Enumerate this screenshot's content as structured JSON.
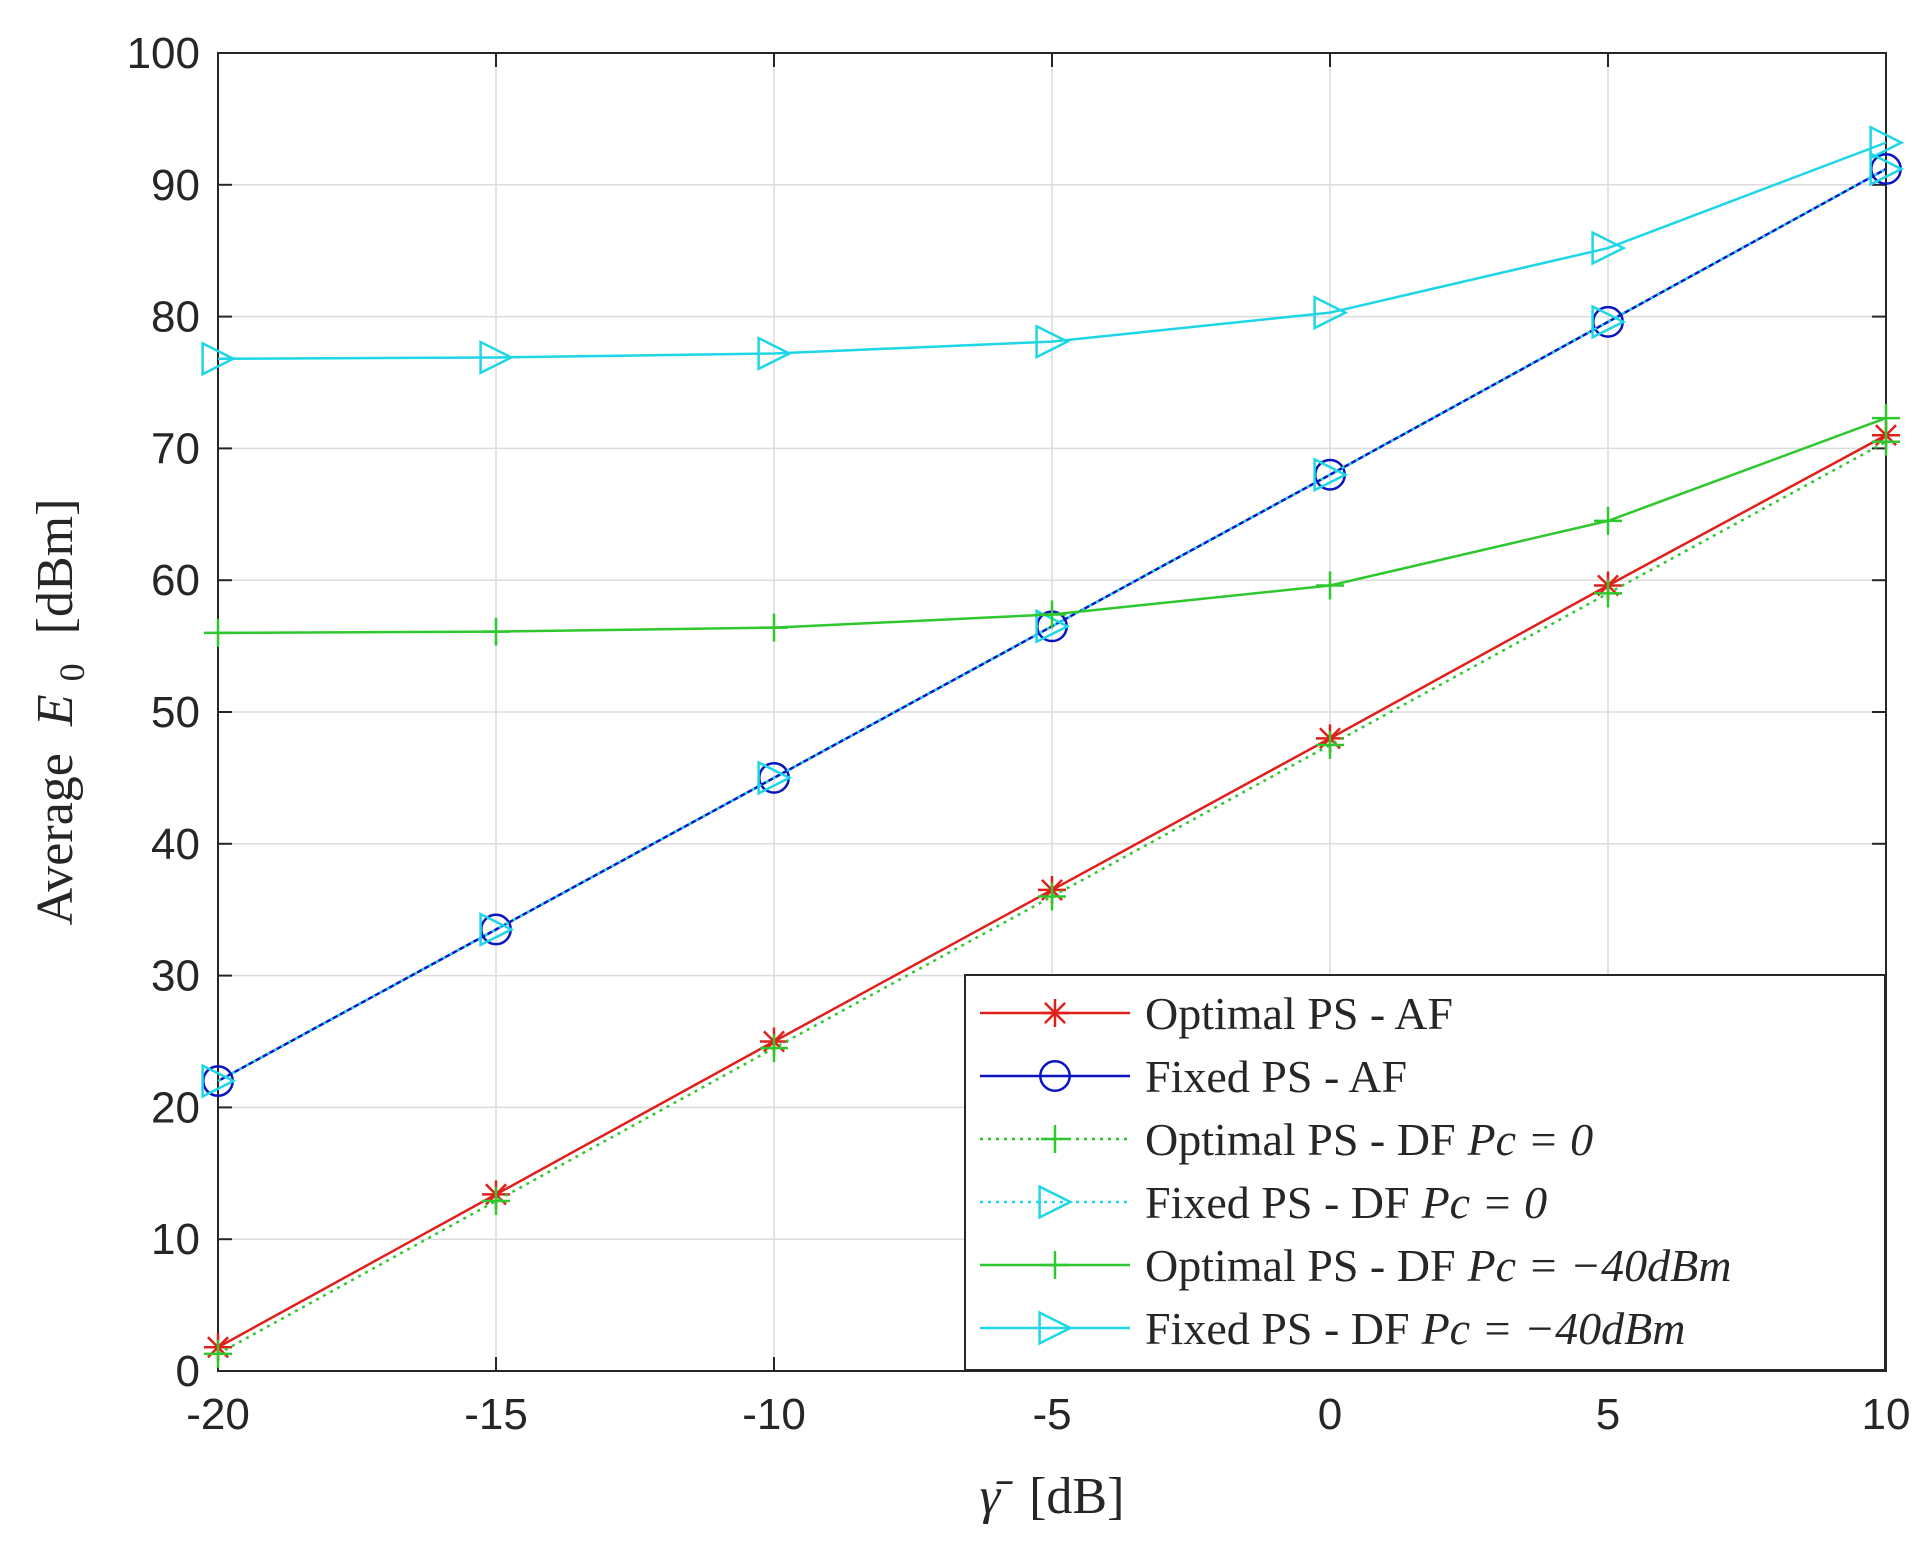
{
  "chart_data": {
    "type": "line",
    "x": [
      -20,
      -15,
      -10,
      -5,
      0,
      5,
      10
    ],
    "xlim": [
      -20,
      10
    ],
    "ylim": [
      0,
      100
    ],
    "xticks": [
      "-20",
      "-15",
      "-10",
      "-5",
      "0",
      "5",
      "10"
    ],
    "yticks": [
      "0",
      "10",
      "20",
      "30",
      "40",
      "50",
      "60",
      "70",
      "80",
      "90",
      "100"
    ],
    "xlabel": {
      "symbol": "γ̄",
      "unit": "[dB]"
    },
    "ylabel": {
      "prefix": "Average",
      "symbol": "E",
      "subscript": "0",
      "unit": "[dBm]"
    },
    "grid": true,
    "legend_position": "bottom-right",
    "series": [
      {
        "name": "Optimal PS - AF",
        "name_math": "",
        "color": "#e0201b",
        "line": "solid",
        "marker": "star",
        "values": [
          1.8,
          13.4,
          25.0,
          36.5,
          48.0,
          59.6,
          71.0
        ]
      },
      {
        "name": "Fixed PS - AF",
        "name_math": "",
        "color": "#0b15c2",
        "line": "solid",
        "marker": "circle",
        "values": [
          22.0,
          33.5,
          45.0,
          56.5,
          68.0,
          79.6,
          91.2
        ]
      },
      {
        "name": "Optimal PS - DF",
        "name_math": "Pc = 0",
        "color": "#2ec82e",
        "line": "dotted",
        "marker": "plus",
        "values": [
          1.3,
          12.9,
          24.5,
          36.0,
          47.5,
          59.0,
          70.5
        ]
      },
      {
        "name": "Fixed PS - DF",
        "name_math": "Pc = 0",
        "color": "#1ed6e6",
        "line": "dotted",
        "marker": "triangle-right",
        "values": [
          22.0,
          33.5,
          45.0,
          56.5,
          68.0,
          79.6,
          91.2
        ]
      },
      {
        "name": "Optimal PS - DF",
        "name_math": "Pc = −40dBm",
        "color": "#2ec82e",
        "line": "solid",
        "marker": "plus",
        "values": [
          56.0,
          56.1,
          56.4,
          57.4,
          59.6,
          64.5,
          72.3
        ]
      },
      {
        "name": "Fixed PS - DF",
        "name_math": "Pc = −40dBm",
        "color": "#1ed6e6",
        "line": "solid",
        "marker": "triangle-right",
        "values": [
          76.8,
          76.9,
          77.2,
          78.1,
          80.3,
          85.2,
          93.2
        ]
      }
    ]
  }
}
